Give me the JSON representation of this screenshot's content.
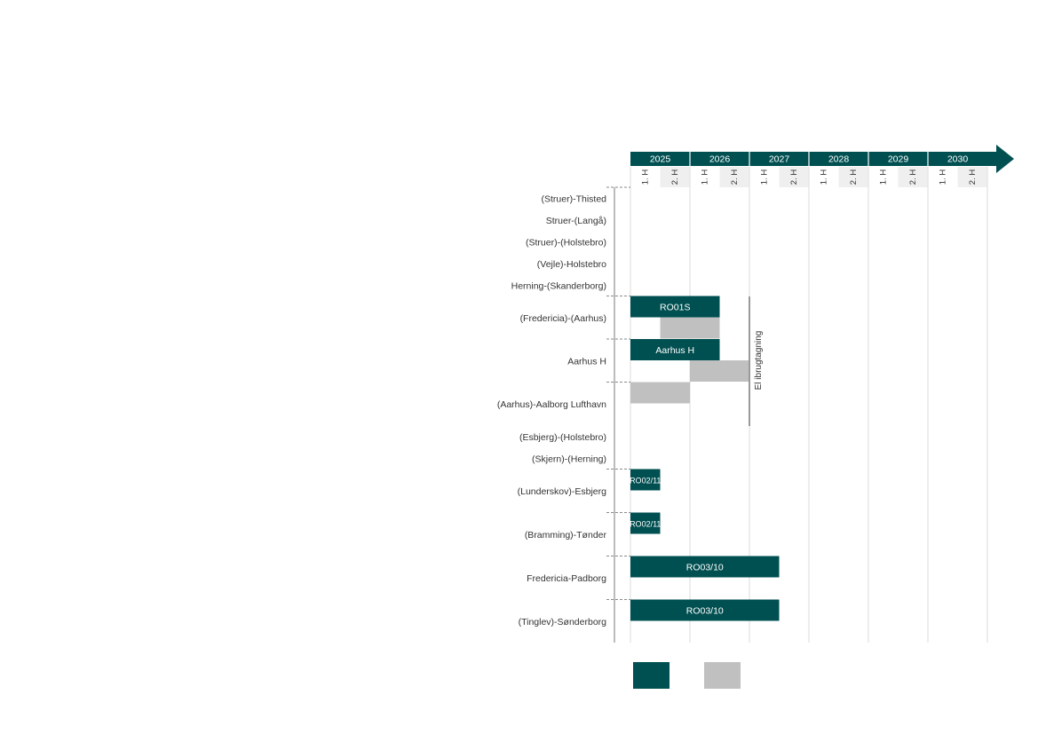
{
  "colors": {
    "primary": "#004F51",
    "secondary": "#C0C0C0",
    "grid": "#E3E3E3",
    "shade": "#EFEFEF",
    "marker": "#9A9A9A"
  },
  "chart_data": {
    "type": "gantt",
    "years": [
      "2025",
      "2026",
      "2027",
      "2028",
      "2029",
      "2030"
    ],
    "halves": [
      "1. H",
      "2. H"
    ],
    "rows": [
      {
        "label": "(Struer)-Thisted",
        "bars": []
      },
      {
        "label": "Struer-(Langå)",
        "bars": []
      },
      {
        "label": "(Struer)-(Holstebro)",
        "bars": []
      },
      {
        "label": "(Vejle)-Holstebro",
        "bars": []
      },
      {
        "label": "Herning-(Skanderborg)",
        "bars": []
      },
      {
        "label": "(Fredericia)-(Aarhus)",
        "bars": [
          {
            "start": 2025.0,
            "end": 2026.5,
            "series": "primary",
            "label": "RO01S"
          },
          {
            "start": 2025.5,
            "end": 2026.5,
            "series": "secondary",
            "label": ""
          }
        ]
      },
      {
        "label": "Aarhus H",
        "bars": [
          {
            "start": 2025.0,
            "end": 2026.5,
            "series": "primary",
            "label": "Aarhus H"
          },
          {
            "start": 2026.0,
            "end": 2027.0,
            "series": "secondary",
            "label": ""
          }
        ]
      },
      {
        "label": "(Aarhus)-Aalborg Lufthavn",
        "bars": [
          {
            "start": 2025.0,
            "end": 2026.0,
            "series": "secondary",
            "label": ""
          }
        ]
      },
      {
        "label": "(Esbjerg)-(Holstebro)",
        "bars": []
      },
      {
        "label": "(Skjern)-(Herning)",
        "bars": []
      },
      {
        "label": "(Lunderskov)-Esbjerg",
        "bars": [
          {
            "start": 2025.0,
            "end": 2025.5,
            "series": "primary",
            "label": "RO02/11"
          }
        ]
      },
      {
        "label": "(Bramming)-Tønder",
        "bars": [
          {
            "start": 2025.0,
            "end": 2025.5,
            "series": "primary",
            "label": "RO02/11"
          }
        ]
      },
      {
        "label": "Fredericia-Padborg",
        "bars": [
          {
            "start": 2025.0,
            "end": 2027.5,
            "series": "primary",
            "label": "RO03/10"
          }
        ]
      },
      {
        "label": "(Tinglev)-Sønderborg",
        "bars": [
          {
            "start": 2025.0,
            "end": 2027.5,
            "series": "primary",
            "label": "RO03/10"
          }
        ]
      }
    ],
    "milestone": {
      "time": 2027.0,
      "label": "El ibrugtagning"
    },
    "legend": [
      {
        "series": "primary",
        "label": ""
      },
      {
        "series": "secondary",
        "label": ""
      }
    ]
  }
}
